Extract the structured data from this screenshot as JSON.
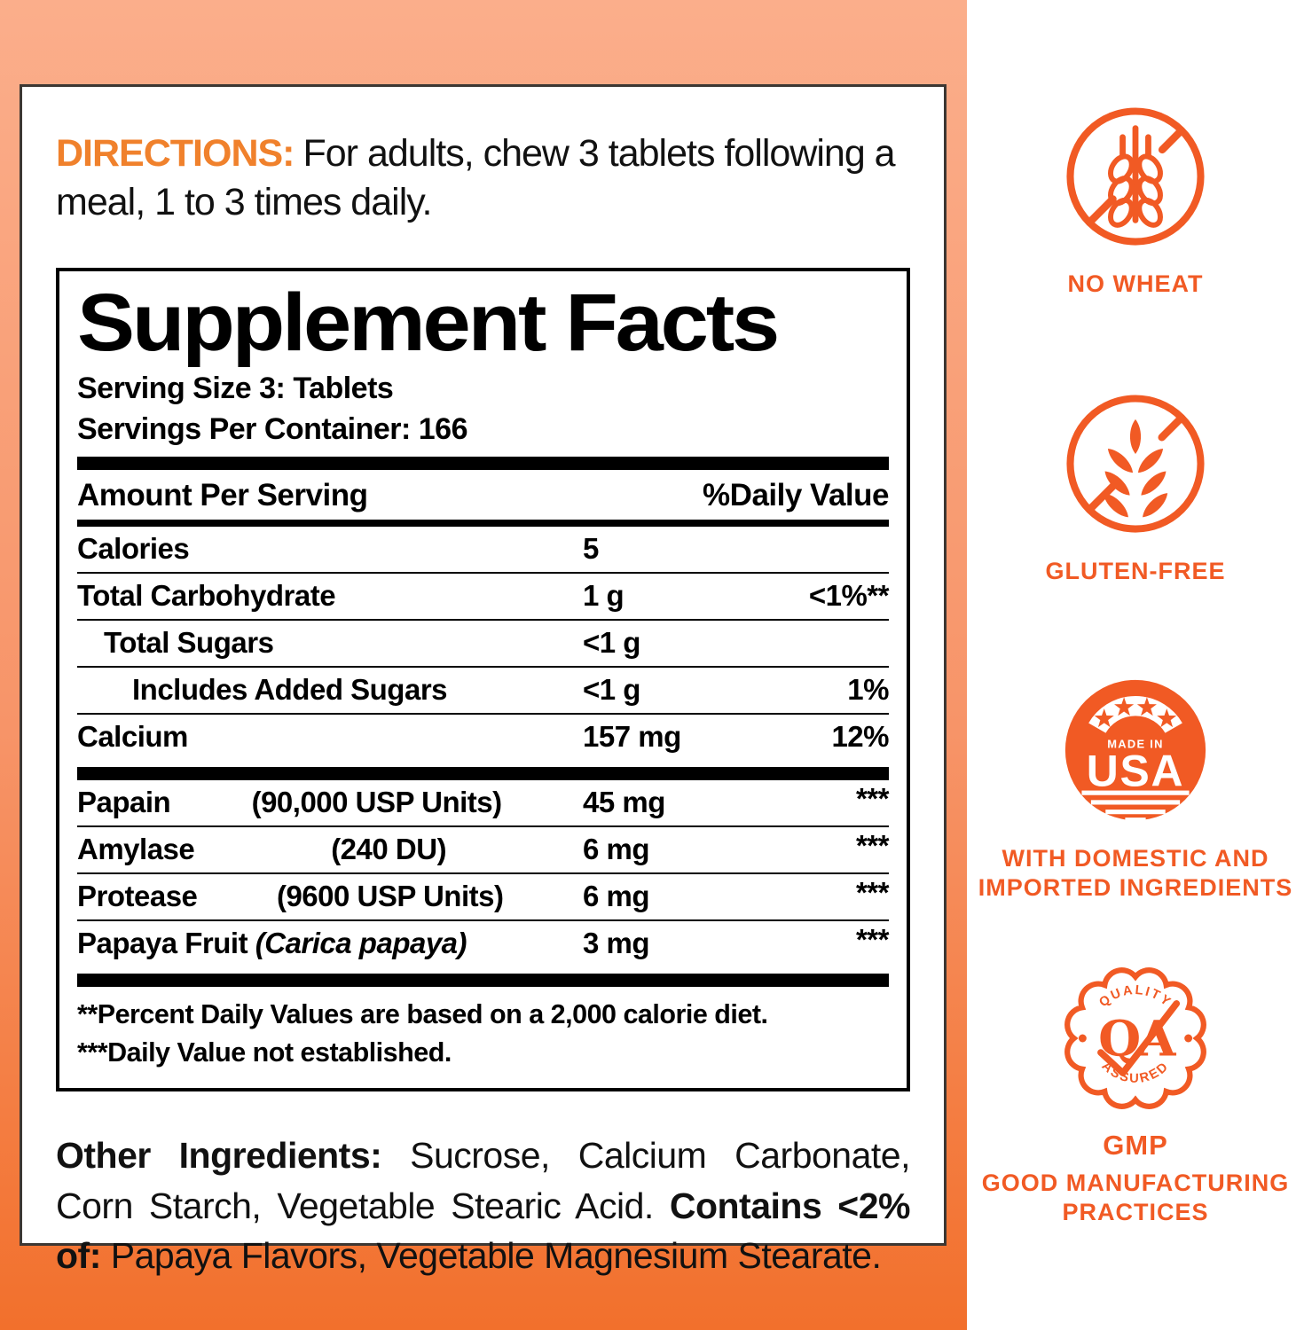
{
  "colors": {
    "badge_orange": "#F15A24",
    "directions_orange": "#F0812C",
    "background_top": "#FBAE8B",
    "background_bottom": "#F2702C",
    "panel_border": "#3C3733",
    "table_black": "#000000"
  },
  "directions": {
    "label": "DIRECTIONS:",
    "text": "For adults, chew 3 tablets following a meal, 1 to 3 times daily."
  },
  "supplement_facts": {
    "title": "Supplement Facts",
    "serving_size": "Serving Size 3: Tablets",
    "servings_per_container": "Servings Per Container: 166",
    "columns": [
      "Amount Per Serving",
      "%Daily Value"
    ],
    "rows": [
      {
        "type": "row",
        "name": "Calories",
        "amount": "5",
        "dv": ""
      },
      {
        "type": "row",
        "name": "Total Carbohydrate",
        "amount": "1 g",
        "dv": "<1%**"
      },
      {
        "type": "row",
        "name": "Total Sugars",
        "amount": "<1 g",
        "dv": "",
        "indent": 1
      },
      {
        "type": "row",
        "name": "Includes Added Sugars",
        "amount": "<1 g",
        "dv": "1%",
        "indent": 2
      },
      {
        "type": "row",
        "name": "Calcium",
        "amount": "157 mg",
        "dv": "12%"
      },
      {
        "type": "bar"
      },
      {
        "type": "row",
        "name": "Papain",
        "detail": "(90,000 USP Units)",
        "amount": "45 mg",
        "dv": "***",
        "raised": true
      },
      {
        "type": "row",
        "name": "Amylase",
        "detail": "(240 DU)",
        "amount": "6 mg",
        "dv": "***",
        "raised": true
      },
      {
        "type": "row",
        "name": "Protease",
        "detail": "(9600 USP Units)",
        "amount": "6 mg",
        "dv": "***",
        "raised": true
      },
      {
        "type": "row",
        "name": "Papaya Fruit",
        "detail": "(Carica papaya)",
        "detail_inline": true,
        "detail_italic": true,
        "amount": "3 mg",
        "dv": "***",
        "raised": true
      },
      {
        "type": "bar"
      }
    ],
    "footnotes": [
      "**Percent Daily Values are based on a 2,000 calorie diet.",
      "***Daily Value not established."
    ]
  },
  "other_ingredients": {
    "segments": [
      {
        "text": "Other Ingredients: ",
        "bold": true
      },
      {
        "text": "Sucrose, Calcium Carbonate, Corn Starch, Vegetable Stearic Acid. ",
        "bold": false
      },
      {
        "text": "Contains <2% of: ",
        "bold": true
      },
      {
        "text": "Papaya Flavors, Vegetable Magnesium Stearate.",
        "bold": false
      }
    ]
  },
  "badges": {
    "no_wheat": {
      "icon": "no-wheat-icon",
      "label": "NO WHEAT"
    },
    "gluten_free": {
      "icon": "gluten-free-icon",
      "label": "GLUTEN-FREE"
    },
    "made_in_usa": {
      "icon": "made-in-usa-seal-icon",
      "seal_top": "MADE IN",
      "seal_main": "USA",
      "label": "WITH DOMESTIC AND\nIMPORTED INGREDIENTS"
    },
    "gmp": {
      "icon": "quality-assured-seal-icon",
      "seal_top": "QUALITY",
      "seal_main": "QA",
      "seal_bottom": "ASSURED",
      "title": "GMP",
      "label": "GOOD MANUFACTURING\nPRACTICES"
    }
  }
}
